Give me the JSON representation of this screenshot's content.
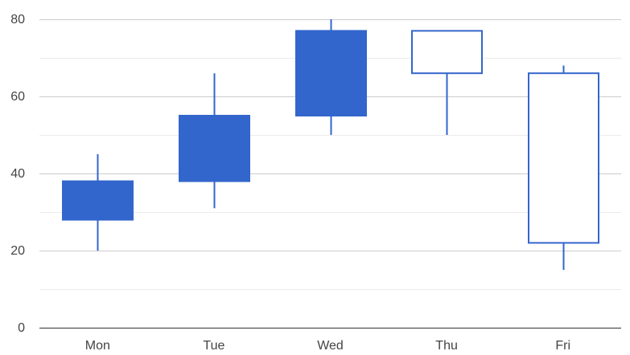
{
  "chart_data": {
    "type": "candlestick",
    "categories": [
      "Mon",
      "Tue",
      "Wed",
      "Thu",
      "Fri"
    ],
    "series": [
      {
        "low": [
          20,
          31,
          50,
          50,
          15
        ],
        "open": [
          28,
          38,
          55,
          77,
          66
        ],
        "close": [
          38,
          55,
          77,
          66,
          22
        ],
        "high": [
          45,
          66,
          80,
          77,
          68
        ]
      }
    ],
    "y_ticks": [
      0,
      20,
      40,
      60,
      80
    ],
    "ylim": [
      0,
      80
    ],
    "minor_gridlines": true,
    "grid": true,
    "colors": {
      "rising_fill": "#3366cc",
      "falling_fill": "#ffffff",
      "stroke": "#3366cc"
    }
  }
}
